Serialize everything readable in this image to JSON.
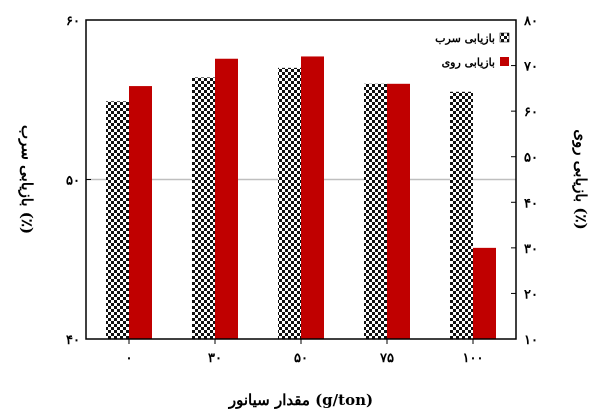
{
  "chart_data": {
    "type": "bar",
    "categories": [
      "۰",
      "۳۰",
      "۵۰",
      "۷۵",
      "۱۰۰"
    ],
    "series": [
      {
        "name": "بازیابی سرب",
        "axis": "left",
        "values": [
          54.9,
          56.4,
          57.0,
          56.0,
          55.5
        ],
        "pattern": "checker"
      },
      {
        "name": "بازیابی روی",
        "axis": "right",
        "values": [
          65.5,
          71.5,
          72.0,
          66.0,
          30.0
        ],
        "color": "#c00000"
      }
    ],
    "y_left": {
      "label": "بازیابی سرب (٪)",
      "range": [
        40,
        60
      ],
      "ticks": [
        "۴۰",
        "۵۰",
        "۶۰"
      ]
    },
    "y_right": {
      "label": "بازیابی روی (٪)",
      "range": [
        10,
        80
      ],
      "ticks": [
        "۱۰",
        "۲۰",
        "۳۰",
        "۴۰",
        "۵۰",
        "۶۰",
        "۷۰",
        "۸۰"
      ]
    },
    "xlabel": "مقدار سیانور (g/ton)",
    "reference_line": {
      "axis": "left",
      "value": 50,
      "color": "#bfbfbf"
    },
    "legend_position": "top-right",
    "grid": false
  }
}
